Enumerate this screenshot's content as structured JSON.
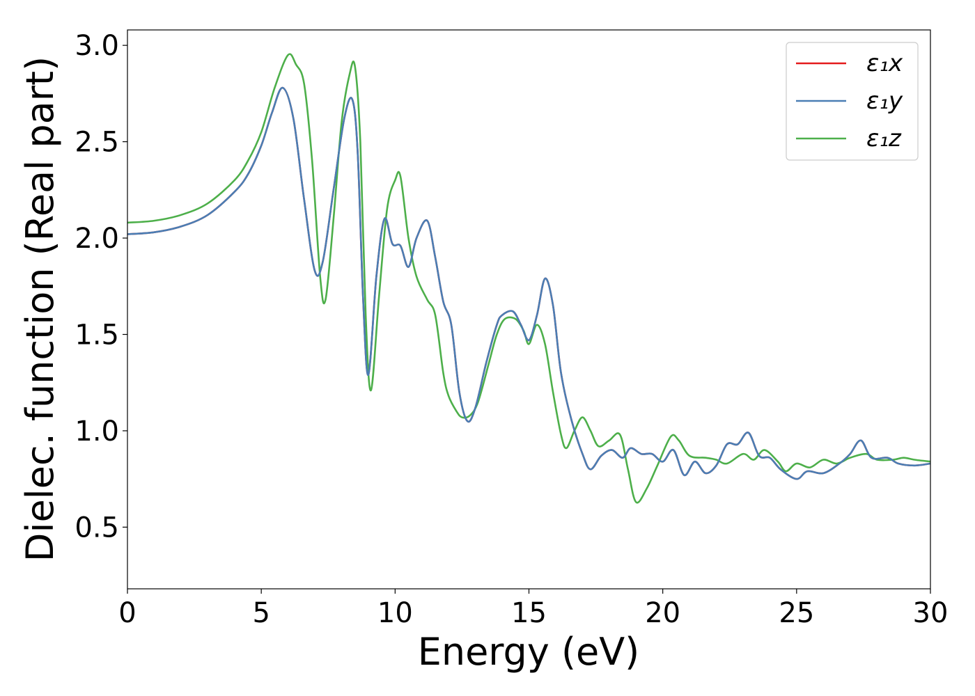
{
  "chart_data": {
    "type": "line",
    "title": "",
    "xlabel": "Energy (eV)",
    "ylabel": "Dielec. function (Real part)",
    "xlim": [
      0,
      30
    ],
    "ylim": [
      0.18,
      3.08
    ],
    "xticks": [
      0,
      5,
      10,
      15,
      20,
      25,
      30
    ],
    "xtick_labels": [
      "0",
      "5",
      "10",
      "15",
      "20",
      "25",
      "30"
    ],
    "yticks": [
      0.5,
      1.0,
      1.5,
      2.0,
      2.5,
      3.0
    ],
    "ytick_labels": [
      "0.5",
      "1.0",
      "1.5",
      "2.0",
      "2.5",
      "3.0"
    ],
    "grid": false,
    "legend_position": "top-right",
    "series": [
      {
        "name": "ε₁x",
        "color": "#e41a1c",
        "points": [
          [
            0,
            2.02
          ],
          [
            1,
            2.03
          ],
          [
            2,
            2.06
          ],
          [
            3,
            2.12
          ],
          [
            4,
            2.24
          ],
          [
            4.5,
            2.33
          ],
          [
            5,
            2.48
          ],
          [
            5.4,
            2.65
          ],
          [
            5.8,
            2.78
          ],
          [
            6.2,
            2.62
          ],
          [
            6.6,
            2.2
          ],
          [
            7.0,
            1.83
          ],
          [
            7.3,
            1.88
          ],
          [
            7.7,
            2.25
          ],
          [
            8.1,
            2.62
          ],
          [
            8.4,
            2.72
          ],
          [
            8.6,
            2.45
          ],
          [
            8.8,
            1.7
          ],
          [
            9.0,
            1.29
          ],
          [
            9.3,
            1.8
          ],
          [
            9.6,
            2.1
          ],
          [
            9.9,
            1.97
          ],
          [
            10.2,
            1.96
          ],
          [
            10.5,
            1.85
          ],
          [
            10.8,
            2.0
          ],
          [
            11.2,
            2.09
          ],
          [
            11.5,
            1.9
          ],
          [
            11.8,
            1.67
          ],
          [
            12.1,
            1.55
          ],
          [
            12.4,
            1.2
          ],
          [
            12.7,
            1.05
          ],
          [
            13.0,
            1.12
          ],
          [
            13.4,
            1.35
          ],
          [
            13.8,
            1.55
          ],
          [
            14.0,
            1.6
          ],
          [
            14.4,
            1.62
          ],
          [
            14.7,
            1.55
          ],
          [
            15.0,
            1.47
          ],
          [
            15.3,
            1.6
          ],
          [
            15.6,
            1.79
          ],
          [
            15.9,
            1.65
          ],
          [
            16.2,
            1.3
          ],
          [
            16.6,
            1.05
          ],
          [
            17.0,
            0.88
          ],
          [
            17.3,
            0.8
          ],
          [
            17.7,
            0.87
          ],
          [
            18.1,
            0.9
          ],
          [
            18.5,
            0.86
          ],
          [
            18.8,
            0.91
          ],
          [
            19.2,
            0.88
          ],
          [
            19.6,
            0.88
          ],
          [
            20.0,
            0.84
          ],
          [
            20.4,
            0.9
          ],
          [
            20.8,
            0.77
          ],
          [
            21.2,
            0.84
          ],
          [
            21.6,
            0.78
          ],
          [
            22.0,
            0.82
          ],
          [
            22.4,
            0.93
          ],
          [
            22.8,
            0.93
          ],
          [
            23.2,
            0.99
          ],
          [
            23.6,
            0.87
          ],
          [
            24.0,
            0.86
          ],
          [
            24.4,
            0.8
          ],
          [
            25.0,
            0.75
          ],
          [
            25.4,
            0.79
          ],
          [
            26.0,
            0.78
          ],
          [
            26.6,
            0.83
          ],
          [
            27.0,
            0.88
          ],
          [
            27.4,
            0.95
          ],
          [
            27.8,
            0.86
          ],
          [
            28.4,
            0.86
          ],
          [
            28.8,
            0.83
          ],
          [
            29.4,
            0.82
          ],
          [
            30,
            0.83
          ]
        ]
      },
      {
        "name": "ε₁y",
        "color": "#4a7eb4",
        "points": [
          [
            0,
            2.02
          ],
          [
            1,
            2.03
          ],
          [
            2,
            2.06
          ],
          [
            3,
            2.12
          ],
          [
            4,
            2.24
          ],
          [
            4.5,
            2.33
          ],
          [
            5,
            2.48
          ],
          [
            5.4,
            2.65
          ],
          [
            5.8,
            2.78
          ],
          [
            6.2,
            2.62
          ],
          [
            6.6,
            2.2
          ],
          [
            7.0,
            1.83
          ],
          [
            7.3,
            1.88
          ],
          [
            7.7,
            2.25
          ],
          [
            8.1,
            2.62
          ],
          [
            8.4,
            2.72
          ],
          [
            8.6,
            2.45
          ],
          [
            8.8,
            1.7
          ],
          [
            9.0,
            1.29
          ],
          [
            9.3,
            1.8
          ],
          [
            9.6,
            2.1
          ],
          [
            9.9,
            1.97
          ],
          [
            10.2,
            1.96
          ],
          [
            10.5,
            1.85
          ],
          [
            10.8,
            2.0
          ],
          [
            11.2,
            2.09
          ],
          [
            11.5,
            1.9
          ],
          [
            11.8,
            1.67
          ],
          [
            12.1,
            1.55
          ],
          [
            12.4,
            1.2
          ],
          [
            12.7,
            1.05
          ],
          [
            13.0,
            1.12
          ],
          [
            13.4,
            1.35
          ],
          [
            13.8,
            1.55
          ],
          [
            14.0,
            1.6
          ],
          [
            14.4,
            1.62
          ],
          [
            14.7,
            1.55
          ],
          [
            15.0,
            1.47
          ],
          [
            15.3,
            1.6
          ],
          [
            15.6,
            1.79
          ],
          [
            15.9,
            1.65
          ],
          [
            16.2,
            1.3
          ],
          [
            16.6,
            1.05
          ],
          [
            17.0,
            0.88
          ],
          [
            17.3,
            0.8
          ],
          [
            17.7,
            0.87
          ],
          [
            18.1,
            0.9
          ],
          [
            18.5,
            0.86
          ],
          [
            18.8,
            0.91
          ],
          [
            19.2,
            0.88
          ],
          [
            19.6,
            0.88
          ],
          [
            20.0,
            0.84
          ],
          [
            20.4,
            0.9
          ],
          [
            20.8,
            0.77
          ],
          [
            21.2,
            0.84
          ],
          [
            21.6,
            0.78
          ],
          [
            22.0,
            0.82
          ],
          [
            22.4,
            0.93
          ],
          [
            22.8,
            0.93
          ],
          [
            23.2,
            0.99
          ],
          [
            23.6,
            0.87
          ],
          [
            24.0,
            0.86
          ],
          [
            24.4,
            0.8
          ],
          [
            25.0,
            0.75
          ],
          [
            25.4,
            0.79
          ],
          [
            26.0,
            0.78
          ],
          [
            26.6,
            0.83
          ],
          [
            27.0,
            0.88
          ],
          [
            27.4,
            0.95
          ],
          [
            27.8,
            0.86
          ],
          [
            28.4,
            0.86
          ],
          [
            28.8,
            0.83
          ],
          [
            29.4,
            0.82
          ],
          [
            30,
            0.83
          ]
        ]
      },
      {
        "name": "ε₁z",
        "color": "#4daf4a",
        "points": [
          [
            0,
            2.08
          ],
          [
            1,
            2.09
          ],
          [
            2,
            2.12
          ],
          [
            3,
            2.18
          ],
          [
            4,
            2.3
          ],
          [
            4.5,
            2.4
          ],
          [
            5,
            2.55
          ],
          [
            5.5,
            2.78
          ],
          [
            6.0,
            2.95
          ],
          [
            6.3,
            2.9
          ],
          [
            6.6,
            2.8
          ],
          [
            6.9,
            2.4
          ],
          [
            7.2,
            1.8
          ],
          [
            7.4,
            1.68
          ],
          [
            7.7,
            2.1
          ],
          [
            8.0,
            2.6
          ],
          [
            8.3,
            2.85
          ],
          [
            8.5,
            2.89
          ],
          [
            8.7,
            2.5
          ],
          [
            8.9,
            1.6
          ],
          [
            9.1,
            1.21
          ],
          [
            9.4,
            1.7
          ],
          [
            9.7,
            2.15
          ],
          [
            10.0,
            2.3
          ],
          [
            10.2,
            2.32
          ],
          [
            10.5,
            2.0
          ],
          [
            10.8,
            1.8
          ],
          [
            11.2,
            1.68
          ],
          [
            11.5,
            1.6
          ],
          [
            11.8,
            1.3
          ],
          [
            12.0,
            1.18
          ],
          [
            12.3,
            1.1
          ],
          [
            12.5,
            1.07
          ],
          [
            12.8,
            1.08
          ],
          [
            13.1,
            1.15
          ],
          [
            13.5,
            1.35
          ],
          [
            13.8,
            1.5
          ],
          [
            14.1,
            1.58
          ],
          [
            14.5,
            1.58
          ],
          [
            14.8,
            1.52
          ],
          [
            15.0,
            1.45
          ],
          [
            15.3,
            1.55
          ],
          [
            15.6,
            1.45
          ],
          [
            15.9,
            1.2
          ],
          [
            16.2,
            0.98
          ],
          [
            16.4,
            0.91
          ],
          [
            16.7,
            1.0
          ],
          [
            17.0,
            1.07
          ],
          [
            17.3,
            1.0
          ],
          [
            17.6,
            0.92
          ],
          [
            18.0,
            0.95
          ],
          [
            18.4,
            0.98
          ],
          [
            18.7,
            0.8
          ],
          [
            19.0,
            0.63
          ],
          [
            19.4,
            0.7
          ],
          [
            19.8,
            0.82
          ],
          [
            20.3,
            0.97
          ],
          [
            20.6,
            0.95
          ],
          [
            21.0,
            0.87
          ],
          [
            21.6,
            0.86
          ],
          [
            22.0,
            0.85
          ],
          [
            22.4,
            0.83
          ],
          [
            23.0,
            0.88
          ],
          [
            23.4,
            0.85
          ],
          [
            23.8,
            0.9
          ],
          [
            24.3,
            0.84
          ],
          [
            24.6,
            0.79
          ],
          [
            25.0,
            0.83
          ],
          [
            25.5,
            0.81
          ],
          [
            26.0,
            0.85
          ],
          [
            26.5,
            0.83
          ],
          [
            27.0,
            0.86
          ],
          [
            27.6,
            0.88
          ],
          [
            28.0,
            0.85
          ],
          [
            28.6,
            0.85
          ],
          [
            29.0,
            0.86
          ],
          [
            29.4,
            0.85
          ],
          [
            30,
            0.84
          ]
        ]
      }
    ]
  }
}
